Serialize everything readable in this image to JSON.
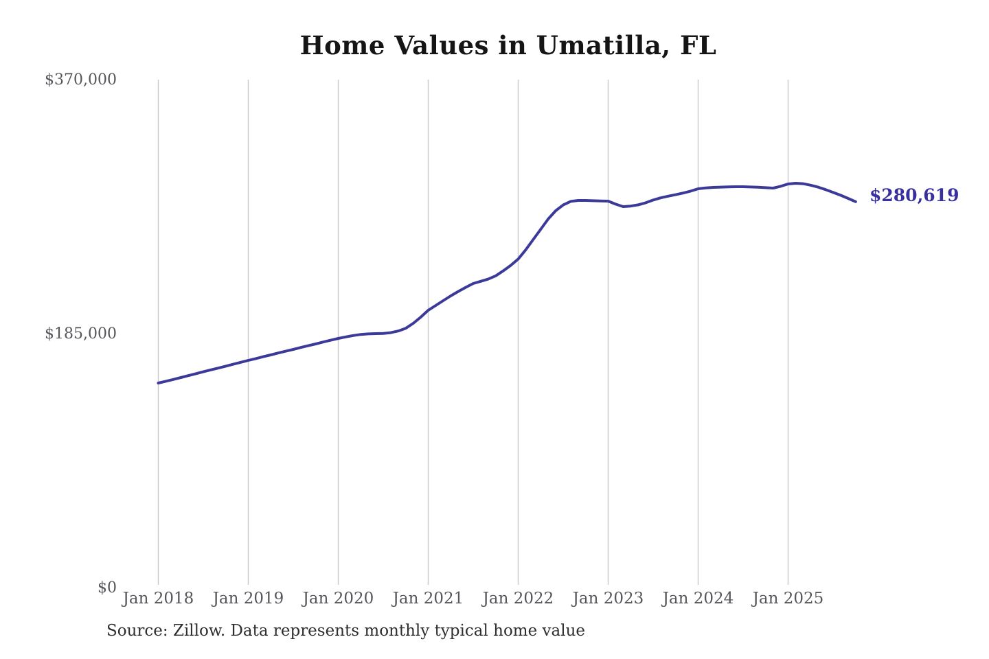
{
  "title": "Home Values in Umatilla, FL",
  "source_note": "Source: Zillow. Data represents monthly typical home value",
  "end_label": "$280,619",
  "chart_data": {
    "type": "line",
    "title": "Home Values in Umatilla, FL",
    "xlabel": "",
    "ylabel": "",
    "ylim": [
      0,
      370000
    ],
    "y_ticks": [
      0,
      185000,
      370000
    ],
    "y_tick_labels": [
      "$0",
      "$185,000",
      "$370,000"
    ],
    "x_tick_labels": [
      "Jan 2018",
      "Jan 2019",
      "Jan 2020",
      "Jan 2021",
      "Jan 2022",
      "Jan 2023",
      "Jan 2024",
      "Jan 2025"
    ],
    "grid": "vertical-only",
    "legend": "none",
    "line_color": "#3c3a99",
    "grid_color": "#c9c9c9",
    "tick_label_color": "#55565a",
    "annotation": {
      "text": "$280,619",
      "value": 280619,
      "color": "#38309f",
      "position": "line-end"
    },
    "series": [
      {
        "name": "Monthly typical home value",
        "start_month": "2018-01",
        "end_month": "2025-10",
        "cadence": "monthly",
        "values": [
          148500,
          149800,
          151100,
          152500,
          153900,
          155300,
          156700,
          158100,
          159400,
          160800,
          162200,
          163600,
          165000,
          166300,
          167700,
          169000,
          170400,
          171700,
          173000,
          174400,
          175700,
          177000,
          178400,
          179700,
          181000,
          182100,
          183100,
          183900,
          184300,
          184500,
          184600,
          185200,
          186400,
          188400,
          192000,
          196500,
          201500,
          205000,
          208500,
          212000,
          215200,
          218200,
          221000,
          222600,
          224200,
          226600,
          230200,
          234200,
          238800,
          245500,
          253000,
          260500,
          268000,
          274000,
          278200,
          280800,
          281500,
          281500,
          281300,
          281100,
          281000,
          278800,
          277000,
          277400,
          278300,
          279800,
          281800,
          283400,
          284600,
          285700,
          286900,
          288300,
          290000,
          290600,
          291000,
          291200,
          291400,
          291500,
          291500,
          291300,
          291100,
          290800,
          290500,
          291800,
          293500,
          294000,
          293700,
          292600,
          291200,
          289400,
          287400,
          285300,
          283000,
          280619
        ]
      }
    ]
  }
}
